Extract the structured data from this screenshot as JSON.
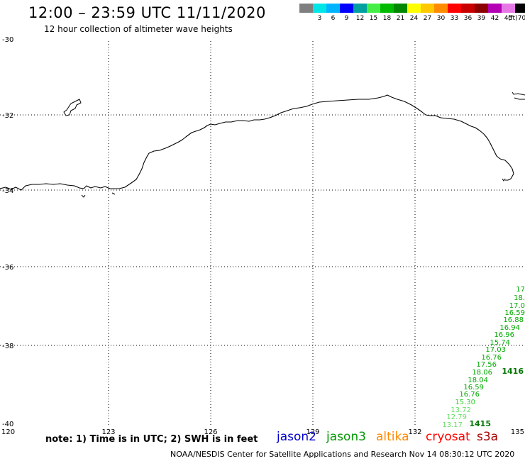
{
  "title": "12:00 – 23:59 UTC 11/11/2020",
  "subtitle": "12 hour collection of altimeter wave heights",
  "scale": {
    "unit": "(ft)",
    "items": [
      {
        "label": "",
        "color": "#7f7f7f"
      },
      {
        "label": "3",
        "color": "#00e6e6"
      },
      {
        "label": "6",
        "color": "#00b4ff"
      },
      {
        "label": "9",
        "color": "#0000ff"
      },
      {
        "label": "12",
        "color": "#00a0a0"
      },
      {
        "label": "15",
        "color": "#44ee44"
      },
      {
        "label": "18",
        "color": "#00bb00"
      },
      {
        "label": "21",
        "color": "#008800"
      },
      {
        "label": "24",
        "color": "#ffff00"
      },
      {
        "label": "27",
        "color": "#ffc800"
      },
      {
        "label": "30",
        "color": "#ff8c00"
      },
      {
        "label": "33",
        "color": "#ff0000"
      },
      {
        "label": "36",
        "color": "#c80000"
      },
      {
        "label": "39",
        "color": "#8c0000"
      },
      {
        "label": "42",
        "color": "#b400b4"
      },
      {
        "label": "45",
        "color": "#e678e6"
      },
      {
        "label": "70",
        "color": "#000000"
      }
    ]
  },
  "axes": {
    "lat_labels": [
      "-30",
      "-32",
      "-34",
      "-36",
      "-38",
      "-40"
    ],
    "lon_labels": [
      "120",
      "123",
      "126",
      "129",
      "132",
      "135"
    ]
  },
  "track": {
    "values": [
      "17",
      "18.",
      "17.0",
      "16.59",
      "16.88",
      "16.94",
      "16.96",
      "15.74",
      "17.03",
      "16.76",
      "17.56",
      "18.06",
      "18.04",
      "16.59",
      "16.76",
      "15.30",
      "13.72",
      "12.79",
      "13.17"
    ],
    "colors": [
      "#00aa00",
      "#00aa00",
      "#00aa00",
      "#00aa00",
      "#00aa00",
      "#00aa00",
      "#00aa00",
      "#00aa00",
      "#00aa00",
      "#00aa00",
      "#00aa00",
      "#00aa00",
      "#00aa00",
      "#00aa00",
      "#00aa00",
      "#33cc33",
      "#66dd66",
      "#66dd66",
      "#66dd66"
    ],
    "time_labels": [
      "1416",
      "1415"
    ],
    "time_color": "#007700"
  },
  "note": "note:  1) Time is in UTC;  2) SWH is in feet",
  "satellites": [
    {
      "name": "jason2",
      "color": "#0000cc"
    },
    {
      "name": "jason3",
      "color": "#009900"
    },
    {
      "name": "altika",
      "color": "#ff8800"
    },
    {
      "name": "cryosat",
      "color": "#ff0000"
    },
    {
      "name": "s3a",
      "color": "#aa0000"
    }
  ],
  "footer": "NOAA/NESDIS Center for Satellite Applications and Research     Nov 14 08:30:12 UTC 2020"
}
